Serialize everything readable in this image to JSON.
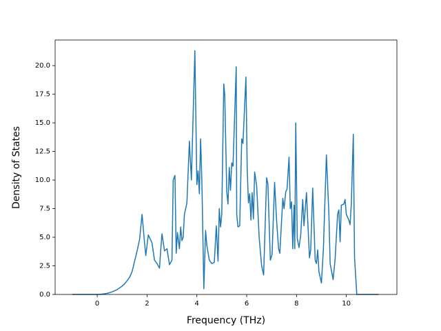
{
  "chart_data": {
    "type": "line",
    "xlabel": "Frequency (THz)",
    "ylabel": "Density of States",
    "color": "#1f77b4",
    "x": [
      -1.0,
      -0.5,
      0,
      0.1,
      0.2,
      0.3,
      0.4,
      0.5,
      0.6,
      0.7,
      0.8,
      0.9,
      1.0,
      1.1,
      1.2,
      1.3,
      1.4,
      1.5,
      1.6,
      1.7,
      1.8,
      1.9,
      1.95,
      2.05,
      2.2,
      2.3,
      2.4,
      2.5,
      2.55,
      2.6,
      2.7,
      2.8,
      2.9,
      3.0,
      3.05,
      3.12,
      3.17,
      3.22,
      3.3,
      3.35,
      3.4,
      3.45,
      3.5,
      3.6,
      3.7,
      3.78,
      3.92,
      4.0,
      4.05,
      4.1,
      4.15,
      4.2,
      4.28,
      4.35,
      4.4,
      4.5,
      4.6,
      4.7,
      4.78,
      4.85,
      4.9,
      4.95,
      5.0,
      5.08,
      5.12,
      5.2,
      5.25,
      5.3,
      5.35,
      5.4,
      5.45,
      5.58,
      5.6,
      5.65,
      5.72,
      5.8,
      5.85,
      5.97,
      6.02,
      6.07,
      6.12,
      6.17,
      6.22,
      6.27,
      6.32,
      6.4,
      6.5,
      6.6,
      6.68,
      6.8,
      6.85,
      6.95,
      7.02,
      7.12,
      7.2,
      7.28,
      7.33,
      7.45,
      7.5,
      7.57,
      7.62,
      7.7,
      7.75,
      7.8,
      7.85,
      7.9,
      7.93,
      7.97,
      8.03,
      8.1,
      8.17,
      8.25,
      8.3,
      8.4,
      8.45,
      8.52,
      8.57,
      8.65,
      8.75,
      8.8,
      8.85,
      8.9,
      9.0,
      9.08,
      9.2,
      9.3,
      9.35,
      9.47,
      9.55,
      9.65,
      9.7,
      9.75,
      9.8,
      9.9,
      9.95,
      10.0,
      10.1,
      10.15,
      10.2,
      10.28,
      10.33,
      10.42,
      11.3
    ],
    "values": [
      0,
      0,
      0,
      0.01,
      0.03,
      0.06,
      0.1,
      0.16,
      0.23,
      0.32,
      0.43,
      0.57,
      0.73,
      0.93,
      1.2,
      1.5,
      2.0,
      2.9,
      3.8,
      4.8,
      7.0,
      4.5,
      3.4,
      5.2,
      4.5,
      3.0,
      2.7,
      2.3,
      3.9,
      5.3,
      3.8,
      4.0,
      2.6,
      3.0,
      10.0,
      10.4,
      3.6,
      5.4,
      4.0,
      5.9,
      4.7,
      5.0,
      7.0,
      8.0,
      13.4,
      10.0,
      21.3,
      9.6,
      10.8,
      8.8,
      13.6,
      10.0,
      0.5,
      5.6,
      4.3,
      3.0,
      2.7,
      2.8,
      6.0,
      2.9,
      7.5,
      5.9,
      7.0,
      18.4,
      17.4,
      9.0,
      7.9,
      11.1,
      9.1,
      11.5,
      11.2,
      19.9,
      7.0,
      5.9,
      6.0,
      13.6,
      13.2,
      19.0,
      11.0,
      8.0,
      8.8,
      6.5,
      8.9,
      6.6,
      10.7,
      9.5,
      5.0,
      2.5,
      1.7,
      10.2,
      9.7,
      3.0,
      3.5,
      9.8,
      6.5,
      4.0,
      3.6,
      8.4,
      7.5,
      9.0,
      9.2,
      12.0,
      7.5,
      8.1,
      4.0,
      7.8,
      4.0,
      15.0,
      4.9,
      4.1,
      5.2,
      8.3,
      6.0,
      8.9,
      6.5,
      3.2,
      3.9,
      9.3,
      3.0,
      2.7,
      3.9,
      2.0,
      1.0,
      4.0,
      12.2,
      7.0,
      2.7,
      1.3,
      3.1,
      7.0,
      7.4,
      4.6,
      7.8,
      7.9,
      8.3,
      7.0,
      6.5,
      6.1,
      7.9,
      14.0,
      3.2,
      0,
      0
    ],
    "xlim": [
      -1.69,
      12.03
    ],
    "ylim": [
      0,
      22.24
    ],
    "xticks": [
      0,
      2,
      4,
      6,
      8,
      10
    ],
    "yticks": [
      {
        "value": 0,
        "label": "0.0"
      },
      {
        "value": 2.5,
        "label": "2.5"
      },
      {
        "value": 5,
        "label": "5.0"
      },
      {
        "value": 7.5,
        "label": "7.5"
      },
      {
        "value": 10,
        "label": "10.0"
      },
      {
        "value": 12.5,
        "label": "12.5"
      },
      {
        "value": 15,
        "label": "15.0"
      },
      {
        "value": 17.5,
        "label": "17.5"
      },
      {
        "value": 20,
        "label": "20.0"
      }
    ]
  }
}
